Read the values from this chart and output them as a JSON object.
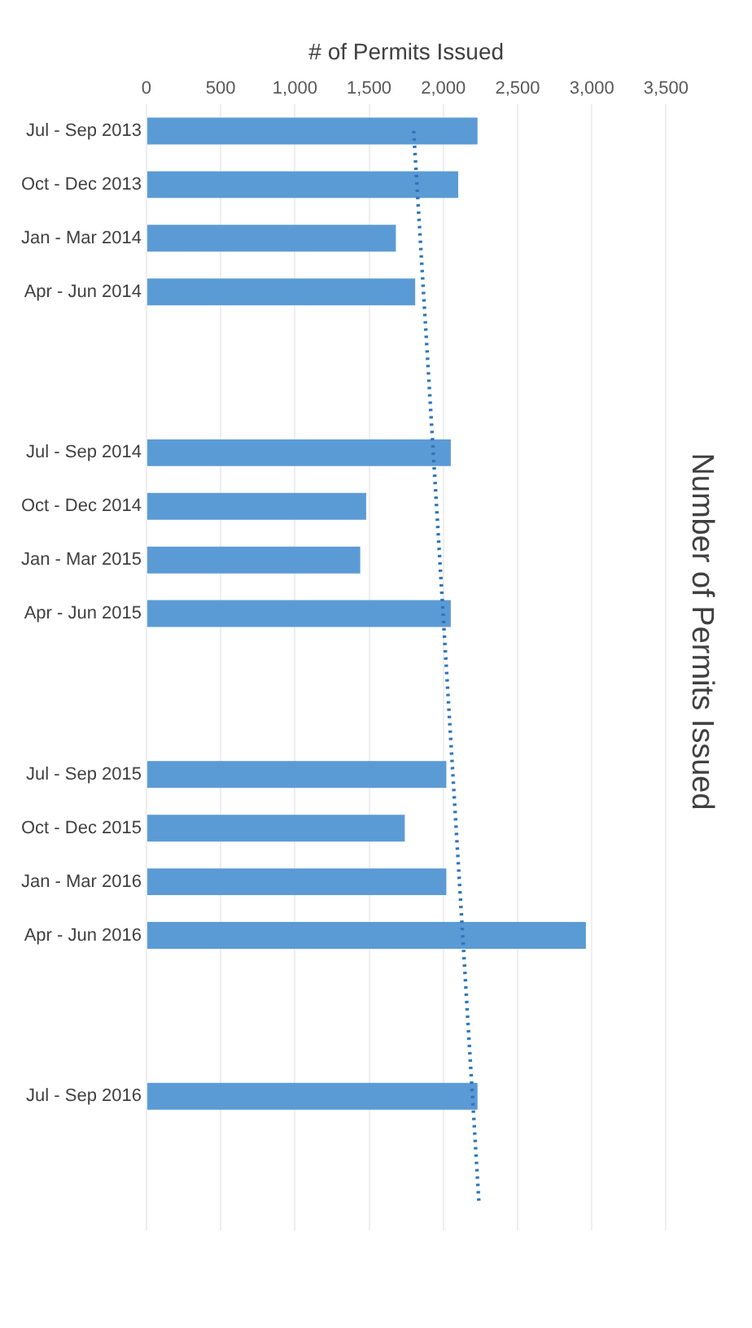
{
  "chart_data": {
    "type": "bar",
    "orientation": "horizontal",
    "title": "Number of Permits Issued",
    "xlabel": "# of Permits Issued",
    "categories": [
      "Jul - Sep 2013",
      "Oct - Dec 2013",
      "Jan - Mar 2014",
      "Apr - Jun 2014",
      null,
      null,
      "Jul - Sep 2014",
      "Oct - Dec 2014",
      "Jan - Mar 2015",
      "Apr - Jun 2015",
      null,
      null,
      "Jul - Sep 2015",
      "Oct - Dec 2015",
      "Jan - Mar 2016",
      "Apr - Jun 2016",
      null,
      null,
      "Jul - Sep 2016",
      null,
      null
    ],
    "series": [
      {
        "color": "#5b9bd5",
        "values": [
          2230,
          2100,
          1680,
          1810,
          null,
          null,
          2050,
          1480,
          1440,
          2050,
          null,
          null,
          2020,
          1740,
          2020,
          2960,
          null,
          null,
          2230,
          null,
          null
        ]
      },
      {
        "type": "line",
        "color": "#2e75b6",
        "line_style": "dotted",
        "marker": "none",
        "values": [
          1800,
          null,
          null,
          null,
          null,
          null,
          null,
          null,
          null,
          null,
          null,
          null,
          null,
          null,
          null,
          null,
          null,
          null,
          null,
          null,
          2240
        ]
      }
    ],
    "xlim": [
      0,
      3500
    ],
    "xticks": [
      {
        "value": 0,
        "label": "0"
      },
      {
        "value": 500,
        "label": "500"
      },
      {
        "value": 1000,
        "label": "1,000"
      },
      {
        "value": 1500,
        "label": "1,500"
      },
      {
        "value": 2000,
        "label": "2,000"
      },
      {
        "value": 2500,
        "label": "2,500"
      },
      {
        "value": 3000,
        "label": "3,000"
      },
      {
        "value": 3500,
        "label": "3,500"
      }
    ],
    "grid": "x",
    "legend": false
  }
}
